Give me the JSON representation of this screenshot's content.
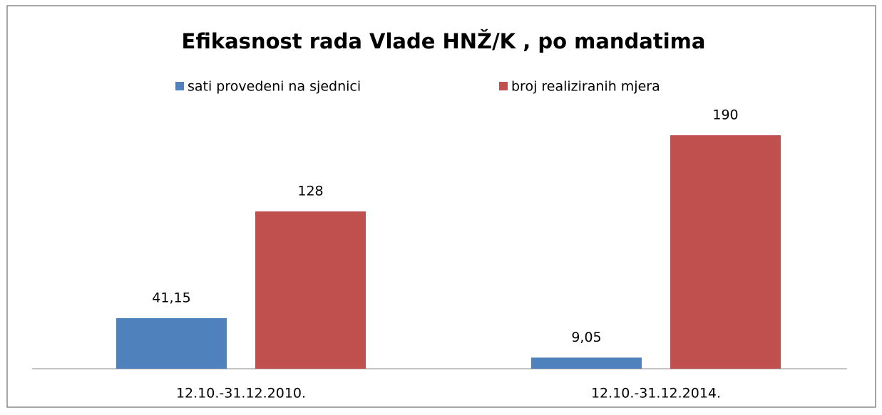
{
  "chart_data": {
    "type": "bar",
    "title": "Efikasnost rada Vlade HNŽ/K , po mandatima",
    "categories": [
      "12.10.-31.12.2010.",
      "12.10.-31.12.2014."
    ],
    "series": [
      {
        "name": "sati provedeni na sjednici",
        "color": "#4f81bd",
        "values": [
          41.15,
          9.05
        ],
        "value_labels": [
          "41,15",
          "9,05"
        ]
      },
      {
        "name": "broj realiziranih mjera",
        "color": "#c0504d",
        "values": [
          128,
          190
        ]
      }
    ]
  }
}
